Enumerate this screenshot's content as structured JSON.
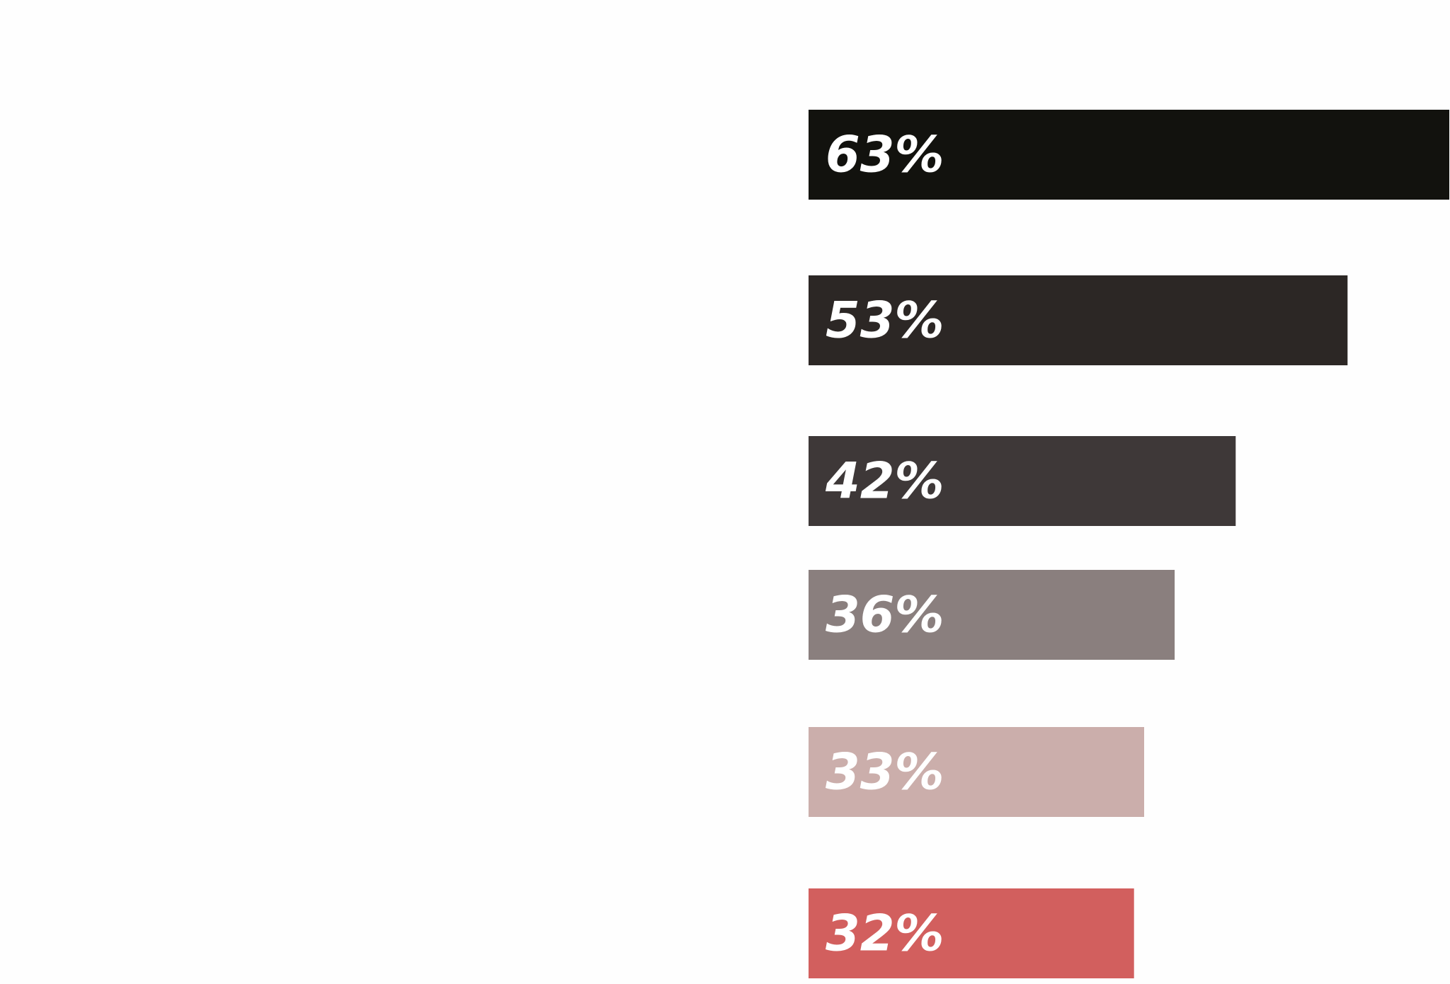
{
  "chart_data": {
    "type": "bar",
    "orientation": "horizontal",
    "values": [
      63,
      53,
      42,
      36,
      33,
      32
    ],
    "value_labels": [
      "63%",
      "53%",
      "42%",
      "36%",
      "33%",
      "32%"
    ],
    "unit": "%",
    "xlim": [
      0,
      63
    ],
    "colors": [
      "#12120e",
      "#2c2725",
      "#3e3838",
      "#8a7f7e",
      "#cbaeab",
      "#d25f5e"
    ],
    "grid": false,
    "legend": "none",
    "title": "",
    "xlabel": "",
    "ylabel": ""
  }
}
